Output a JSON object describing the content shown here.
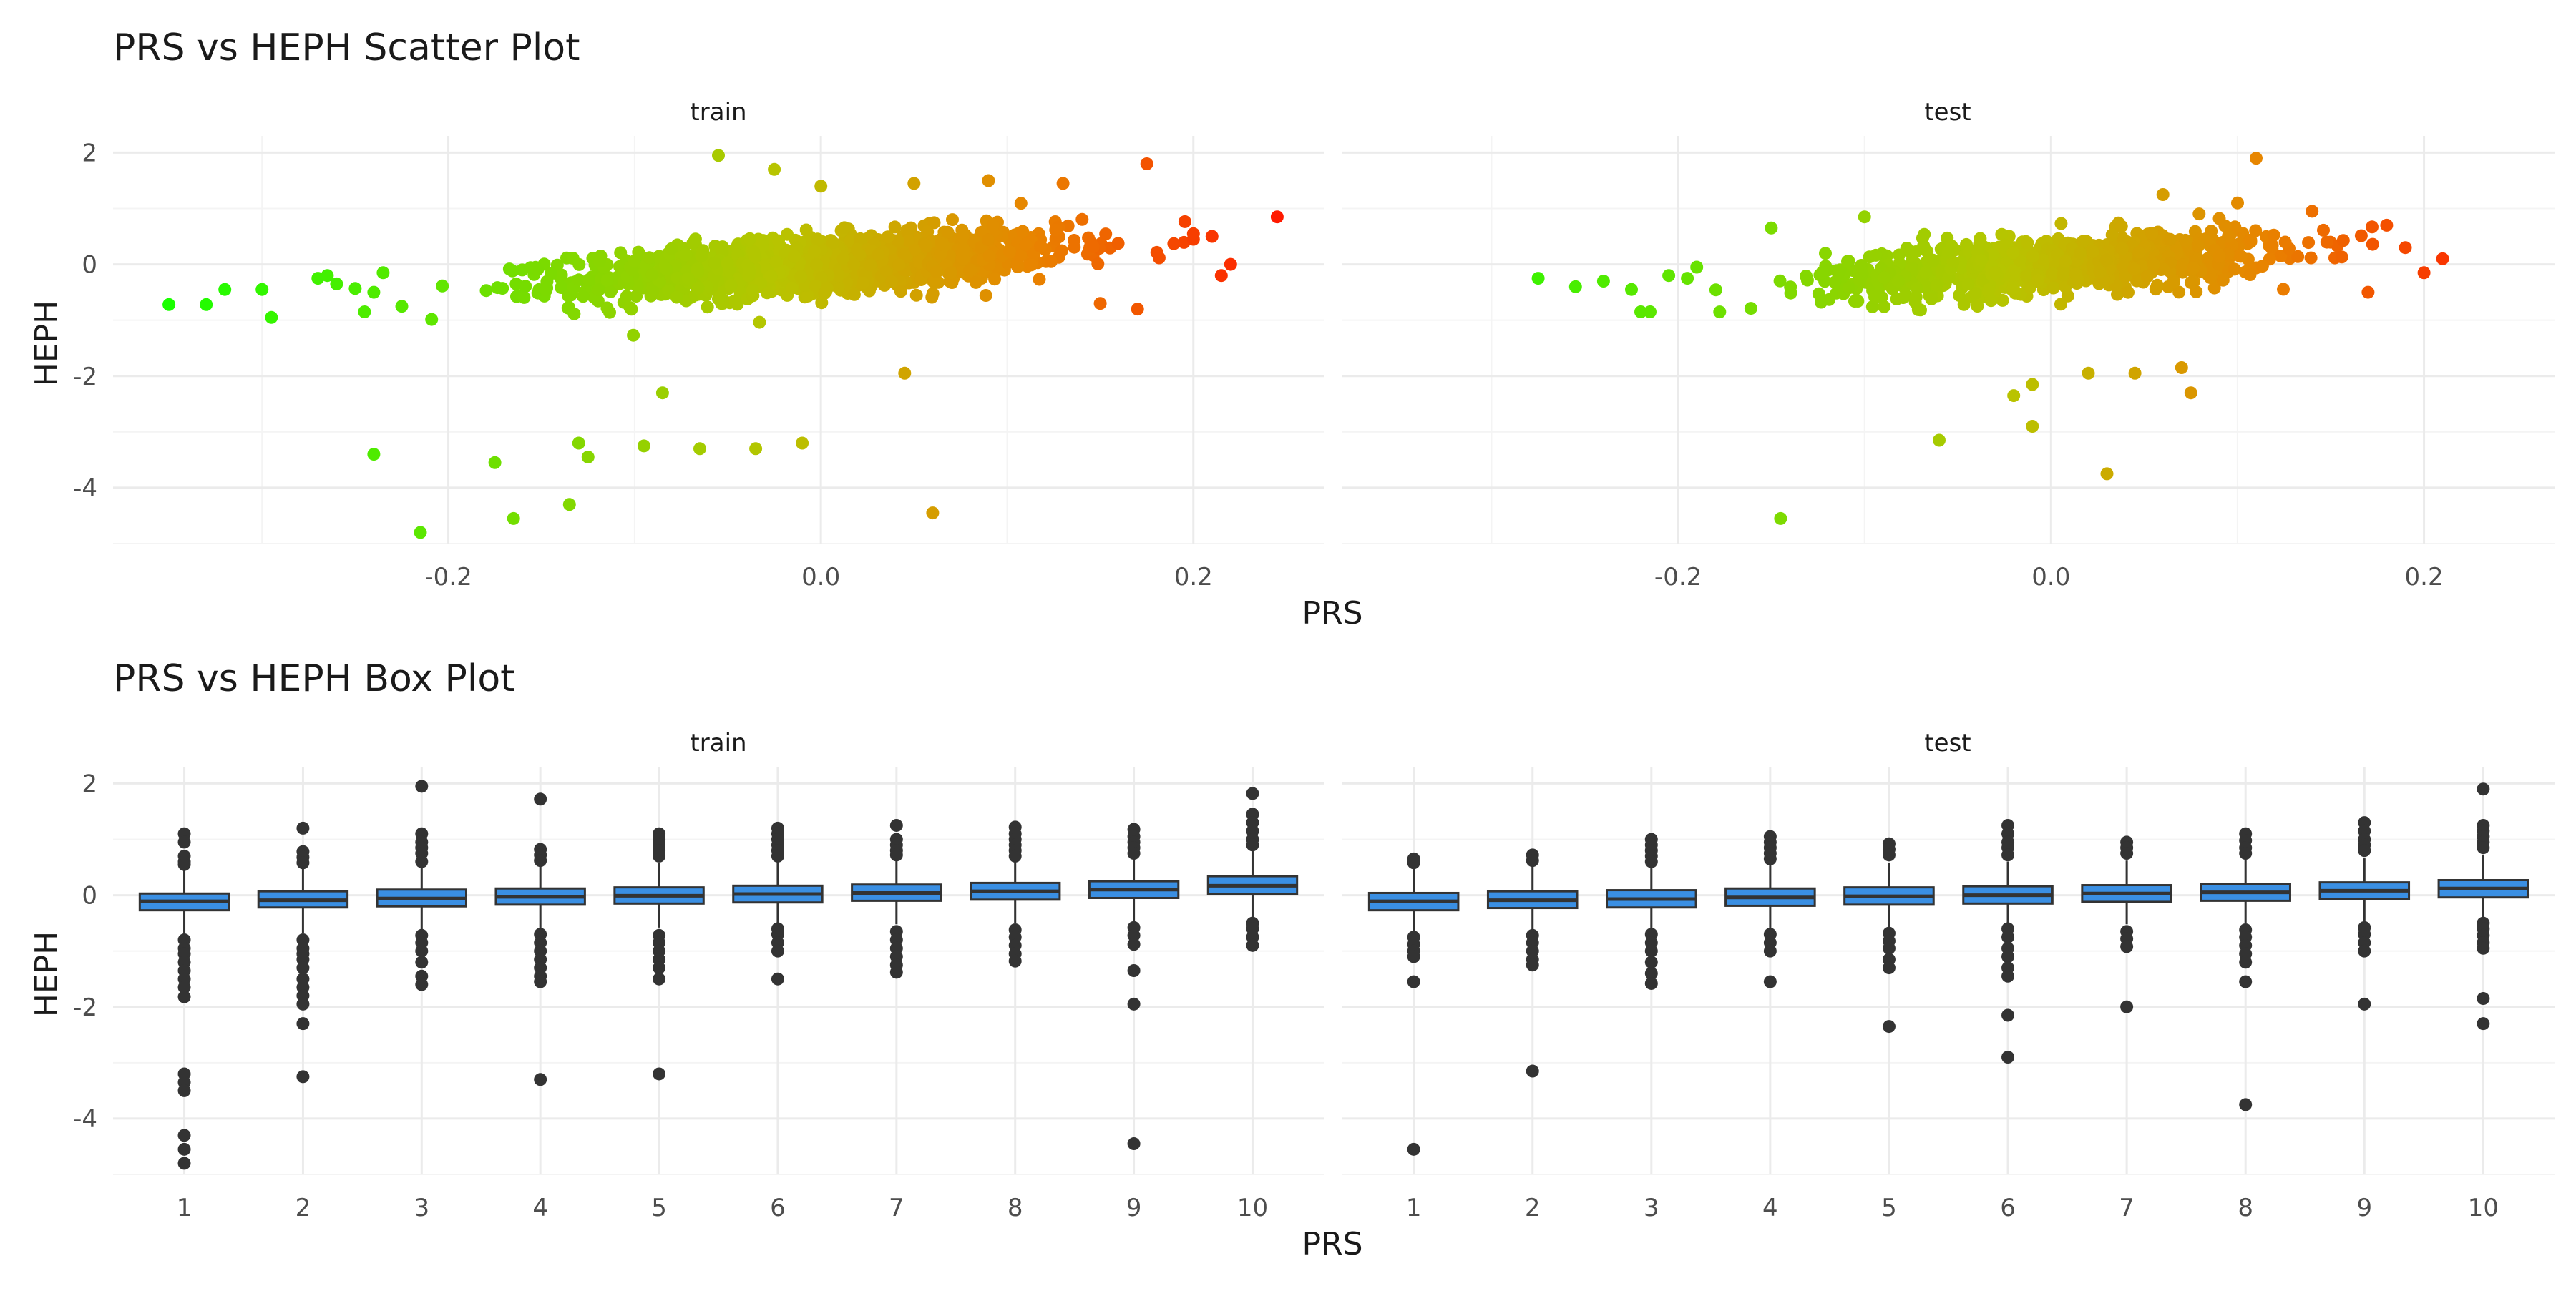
{
  "colors": {
    "background": "#ffffff",
    "grid_major": "#ebebeb",
    "grid_minor": "#f4f4f4",
    "box_fill": "#3a8fe3",
    "box_line": "#333333",
    "outlier": "#333333",
    "gradient_low": "#1aff00",
    "gradient_mid": "#b8c400",
    "gradient_high": "#ff1a00"
  },
  "chart_data": [
    {
      "type": "scatter",
      "title": "PRS vs HEPH Scatter Plot",
      "xlabel": "PRS",
      "ylabel": "HEPH",
      "facets": [
        "train",
        "test"
      ],
      "xlim": [
        -0.38,
        0.27
      ],
      "ylim": [
        -5.0,
        2.3
      ],
      "x_ticks": [
        -0.2,
        0.0,
        0.2
      ],
      "x_tick_labels": [
        "-0.2",
        "0.0",
        "0.2"
      ],
      "y_ticks": [
        2,
        0,
        -2,
        -4
      ],
      "y_tick_labels": [
        "2",
        "0",
        "-2",
        "-4"
      ],
      "color_by": "PRS",
      "grid": true,
      "panels": {
        "train": {
          "bulk": {
            "n": 1400,
            "x_mean": 0.0,
            "x_sd": 0.065,
            "y_slope": 2.2,
            "y_sd": 0.25
          },
          "points": [
            [
              -0.35,
              -0.72
            ],
            [
              -0.33,
              -0.72
            ],
            [
              -0.32,
              -0.45
            ],
            [
              -0.3,
              -0.45
            ],
            [
              -0.295,
              -0.95
            ],
            [
              -0.27,
              -0.25
            ],
            [
              -0.265,
              -0.2
            ],
            [
              -0.26,
              -0.35
            ],
            [
              -0.245,
              -0.85
            ],
            [
              -0.24,
              -0.5
            ],
            [
              -0.235,
              -0.15
            ],
            [
              -0.225,
              -0.75
            ],
            [
              -0.24,
              -3.4
            ],
            [
              -0.175,
              -3.55
            ],
            [
              -0.165,
              -4.55
            ],
            [
              -0.215,
              -4.8
            ],
            [
              -0.13,
              -3.2
            ],
            [
              -0.125,
              -3.45
            ],
            [
              -0.135,
              -4.3
            ],
            [
              -0.095,
              -3.25
            ],
            [
              -0.065,
              -3.3
            ],
            [
              -0.035,
              -3.3
            ],
            [
              -0.01,
              -3.2
            ],
            [
              0.06,
              -4.45
            ],
            [
              0.045,
              -1.95
            ],
            [
              -0.085,
              -2.3
            ],
            [
              -0.055,
              1.95
            ],
            [
              -0.025,
              1.7
            ],
            [
              0.175,
              1.8
            ],
            [
              0.245,
              0.85
            ],
            [
              0.215,
              -0.2
            ],
            [
              0.22,
              0.0
            ],
            [
              0.21,
              0.5
            ],
            [
              0.2,
              0.45
            ],
            [
              0.17,
              -0.8
            ],
            [
              0.15,
              -0.7
            ],
            [
              0.13,
              1.45
            ],
            [
              0.09,
              1.5
            ],
            [
              0.05,
              1.45
            ],
            [
              0.0,
              1.4
            ]
          ]
        },
        "test": {
          "bulk": {
            "n": 900,
            "x_mean": 0.0,
            "x_sd": 0.06,
            "y_slope": 2.2,
            "y_sd": 0.25
          },
          "points": [
            [
              -0.275,
              -0.25
            ],
            [
              -0.255,
              -0.4
            ],
            [
              -0.24,
              -0.3
            ],
            [
              -0.225,
              -0.45
            ],
            [
              -0.22,
              -0.85
            ],
            [
              -0.215,
              -0.85
            ],
            [
              -0.205,
              -0.2
            ],
            [
              -0.195,
              -0.25
            ],
            [
              -0.19,
              -0.05
            ],
            [
              -0.145,
              -4.55
            ],
            [
              -0.06,
              -3.15
            ],
            [
              -0.02,
              -2.35
            ],
            [
              -0.01,
              -2.15
            ],
            [
              -0.01,
              -2.9
            ],
            [
              0.03,
              -3.75
            ],
            [
              0.02,
              -1.95
            ],
            [
              0.045,
              -1.95
            ],
            [
              0.07,
              -1.85
            ],
            [
              0.075,
              -2.3
            ],
            [
              0.11,
              1.9
            ],
            [
              0.21,
              0.1
            ],
            [
              0.2,
              -0.15
            ],
            [
              0.18,
              0.7
            ],
            [
              0.19,
              0.3
            ],
            [
              0.17,
              -0.5
            ],
            [
              0.1,
              1.1
            ],
            [
              0.06,
              1.25
            ],
            [
              -0.1,
              0.85
            ],
            [
              -0.15,
              0.65
            ],
            [
              0.14,
              0.95
            ]
          ]
        }
      }
    },
    {
      "type": "box",
      "title": "PRS vs HEPH Box Plot",
      "xlabel": "PRS",
      "ylabel": "HEPH",
      "facets": [
        "train",
        "test"
      ],
      "categories": [
        "1",
        "2",
        "3",
        "4",
        "5",
        "6",
        "7",
        "8",
        "9",
        "10"
      ],
      "ylim": [
        -5.0,
        2.3
      ],
      "y_ticks": [
        2,
        0,
        -2,
        -4
      ],
      "y_tick_labels": [
        "2",
        "0",
        "-2",
        "-4"
      ],
      "grid": true,
      "panels": {
        "train": {
          "boxes": [
            {
              "q1": -0.27,
              "median": -0.11,
              "q3": 0.03,
              "lower": -0.72,
              "upper": 0.48,
              "outliers": [
                1.1,
                0.95,
                0.7,
                0.6,
                0.55,
                -0.8,
                -0.95,
                -1.05,
                -1.2,
                -1.35,
                -1.5,
                -1.65,
                -1.82,
                -3.2,
                -3.35,
                -3.5,
                -4.3,
                -4.55,
                -4.8
              ]
            },
            {
              "q1": -0.22,
              "median": -0.09,
              "q3": 0.07,
              "lower": -0.68,
              "upper": 0.52,
              "outliers": [
                1.2,
                0.78,
                0.68,
                0.58,
                -0.8,
                -0.95,
                -1.05,
                -1.15,
                -1.3,
                -1.5,
                -1.65,
                -1.8,
                -1.95,
                -2.3,
                -3.25
              ]
            },
            {
              "q1": -0.2,
              "median": -0.06,
              "q3": 0.1,
              "lower": -0.62,
              "upper": 0.55,
              "outliers": [
                1.95,
                1.1,
                0.95,
                0.85,
                0.75,
                0.6,
                -0.72,
                -0.85,
                -1.0,
                -1.2,
                -1.45,
                -1.6
              ]
            },
            {
              "q1": -0.17,
              "median": -0.03,
              "q3": 0.12,
              "lower": -0.6,
              "upper": 0.55,
              "outliers": [
                1.72,
                0.82,
                0.72,
                0.62,
                -0.7,
                -0.85,
                -1.0,
                -1.15,
                -1.3,
                -1.45,
                -1.55,
                -3.3
              ]
            },
            {
              "q1": -0.15,
              "median": -0.01,
              "q3": 0.14,
              "lower": -0.58,
              "upper": 0.58,
              "outliers": [
                1.1,
                1.0,
                0.9,
                0.8,
                0.7,
                -0.72,
                -0.85,
                -1.0,
                -1.15,
                -1.3,
                -1.5,
                -3.2
              ]
            },
            {
              "q1": -0.13,
              "median": 0.02,
              "q3": 0.17,
              "lower": -0.55,
              "upper": 0.6,
              "outliers": [
                1.2,
                1.1,
                1.0,
                0.9,
                0.8,
                0.7,
                -0.6,
                -0.7,
                -0.85,
                -1.0,
                -1.5
              ]
            },
            {
              "q1": -0.1,
              "median": 0.04,
              "q3": 0.19,
              "lower": -0.52,
              "upper": 0.62,
              "outliers": [
                1.25,
                1.0,
                0.9,
                0.8,
                0.72,
                -0.65,
                -0.8,
                -0.95,
                -1.1,
                -1.25,
                -1.38
              ]
            },
            {
              "q1": -0.08,
              "median": 0.07,
              "q3": 0.22,
              "lower": -0.5,
              "upper": 0.65,
              "outliers": [
                1.22,
                1.1,
                1.0,
                0.9,
                0.8,
                0.7,
                -0.62,
                -0.75,
                -0.9,
                -1.05,
                -1.18
              ]
            },
            {
              "q1": -0.05,
              "median": 0.1,
              "q3": 0.25,
              "lower": -0.48,
              "upper": 0.68,
              "outliers": [
                1.18,
                1.05,
                0.95,
                0.85,
                0.75,
                -0.58,
                -0.72,
                -0.88,
                -1.35,
                -1.95,
                -4.45
              ]
            },
            {
              "q1": 0.02,
              "median": 0.17,
              "q3": 0.34,
              "lower": -0.45,
              "upper": 0.8,
              "outliers": [
                1.82,
                1.45,
                1.3,
                1.15,
                1.0,
                0.9,
                -0.5,
                -0.6,
                -0.75,
                -0.9
              ]
            }
          ]
        },
        "test": {
          "boxes": [
            {
              "q1": -0.27,
              "median": -0.11,
              "q3": 0.04,
              "lower": -0.68,
              "upper": 0.5,
              "outliers": [
                0.65,
                0.58,
                -0.75,
                -0.88,
                -1.0,
                -1.1,
                -1.55,
                -4.55
              ]
            },
            {
              "q1": -0.23,
              "median": -0.09,
              "q3": 0.07,
              "lower": -0.66,
              "upper": 0.52,
              "outliers": [
                0.72,
                0.62,
                -0.72,
                -0.85,
                -1.0,
                -1.15,
                -1.25,
                -3.15
              ]
            },
            {
              "q1": -0.22,
              "median": -0.07,
              "q3": 0.09,
              "lower": -0.64,
              "upper": 0.55,
              "outliers": [
                1.0,
                0.9,
                0.8,
                0.7,
                0.6,
                -0.7,
                -0.85,
                -1.0,
                -1.2,
                -1.4,
                -1.58
              ]
            },
            {
              "q1": -0.19,
              "median": -0.04,
              "q3": 0.12,
              "lower": -0.6,
              "upper": 0.57,
              "outliers": [
                1.05,
                0.95,
                0.85,
                0.75,
                0.65,
                -0.7,
                -0.85,
                -1.0,
                -1.55
              ]
            },
            {
              "q1": -0.17,
              "median": -0.02,
              "q3": 0.14,
              "lower": -0.58,
              "upper": 0.58,
              "outliers": [
                0.92,
                0.82,
                0.72,
                -0.68,
                -0.82,
                -0.95,
                -1.15,
                -1.3,
                -2.35
              ]
            },
            {
              "q1": -0.15,
              "median": 0.0,
              "q3": 0.16,
              "lower": -0.55,
              "upper": 0.6,
              "outliers": [
                1.25,
                1.1,
                0.95,
                0.85,
                0.72,
                -0.6,
                -0.75,
                -0.95,
                -1.1,
                -1.3,
                -1.45,
                -2.15,
                -2.9
              ]
            },
            {
              "q1": -0.12,
              "median": 0.03,
              "q3": 0.18,
              "lower": -0.52,
              "upper": 0.62,
              "outliers": [
                0.95,
                0.85,
                0.75,
                -0.65,
                -0.78,
                -0.92,
                -2.0
              ]
            },
            {
              "q1": -0.1,
              "median": 0.05,
              "q3": 0.2,
              "lower": -0.5,
              "upper": 0.64,
              "outliers": [
                1.1,
                0.98,
                0.85,
                0.75,
                -0.62,
                -0.75,
                -0.9,
                -1.05,
                -1.2,
                -1.55,
                -3.75
              ]
            },
            {
              "q1": -0.07,
              "median": 0.08,
              "q3": 0.23,
              "lower": -0.48,
              "upper": 0.66,
              "outliers": [
                1.3,
                1.15,
                1.0,
                0.9,
                0.8,
                -0.58,
                -0.7,
                -0.85,
                -1.0,
                -1.95
              ]
            },
            {
              "q1": -0.04,
              "median": 0.12,
              "q3": 0.27,
              "lower": -0.45,
              "upper": 0.72,
              "outliers": [
                1.9,
                1.25,
                1.15,
                1.05,
                0.95,
                0.85,
                -0.5,
                -0.6,
                -0.72,
                -0.85,
                -0.95,
                -1.85,
                -2.3
              ]
            }
          ]
        }
      }
    }
  ]
}
